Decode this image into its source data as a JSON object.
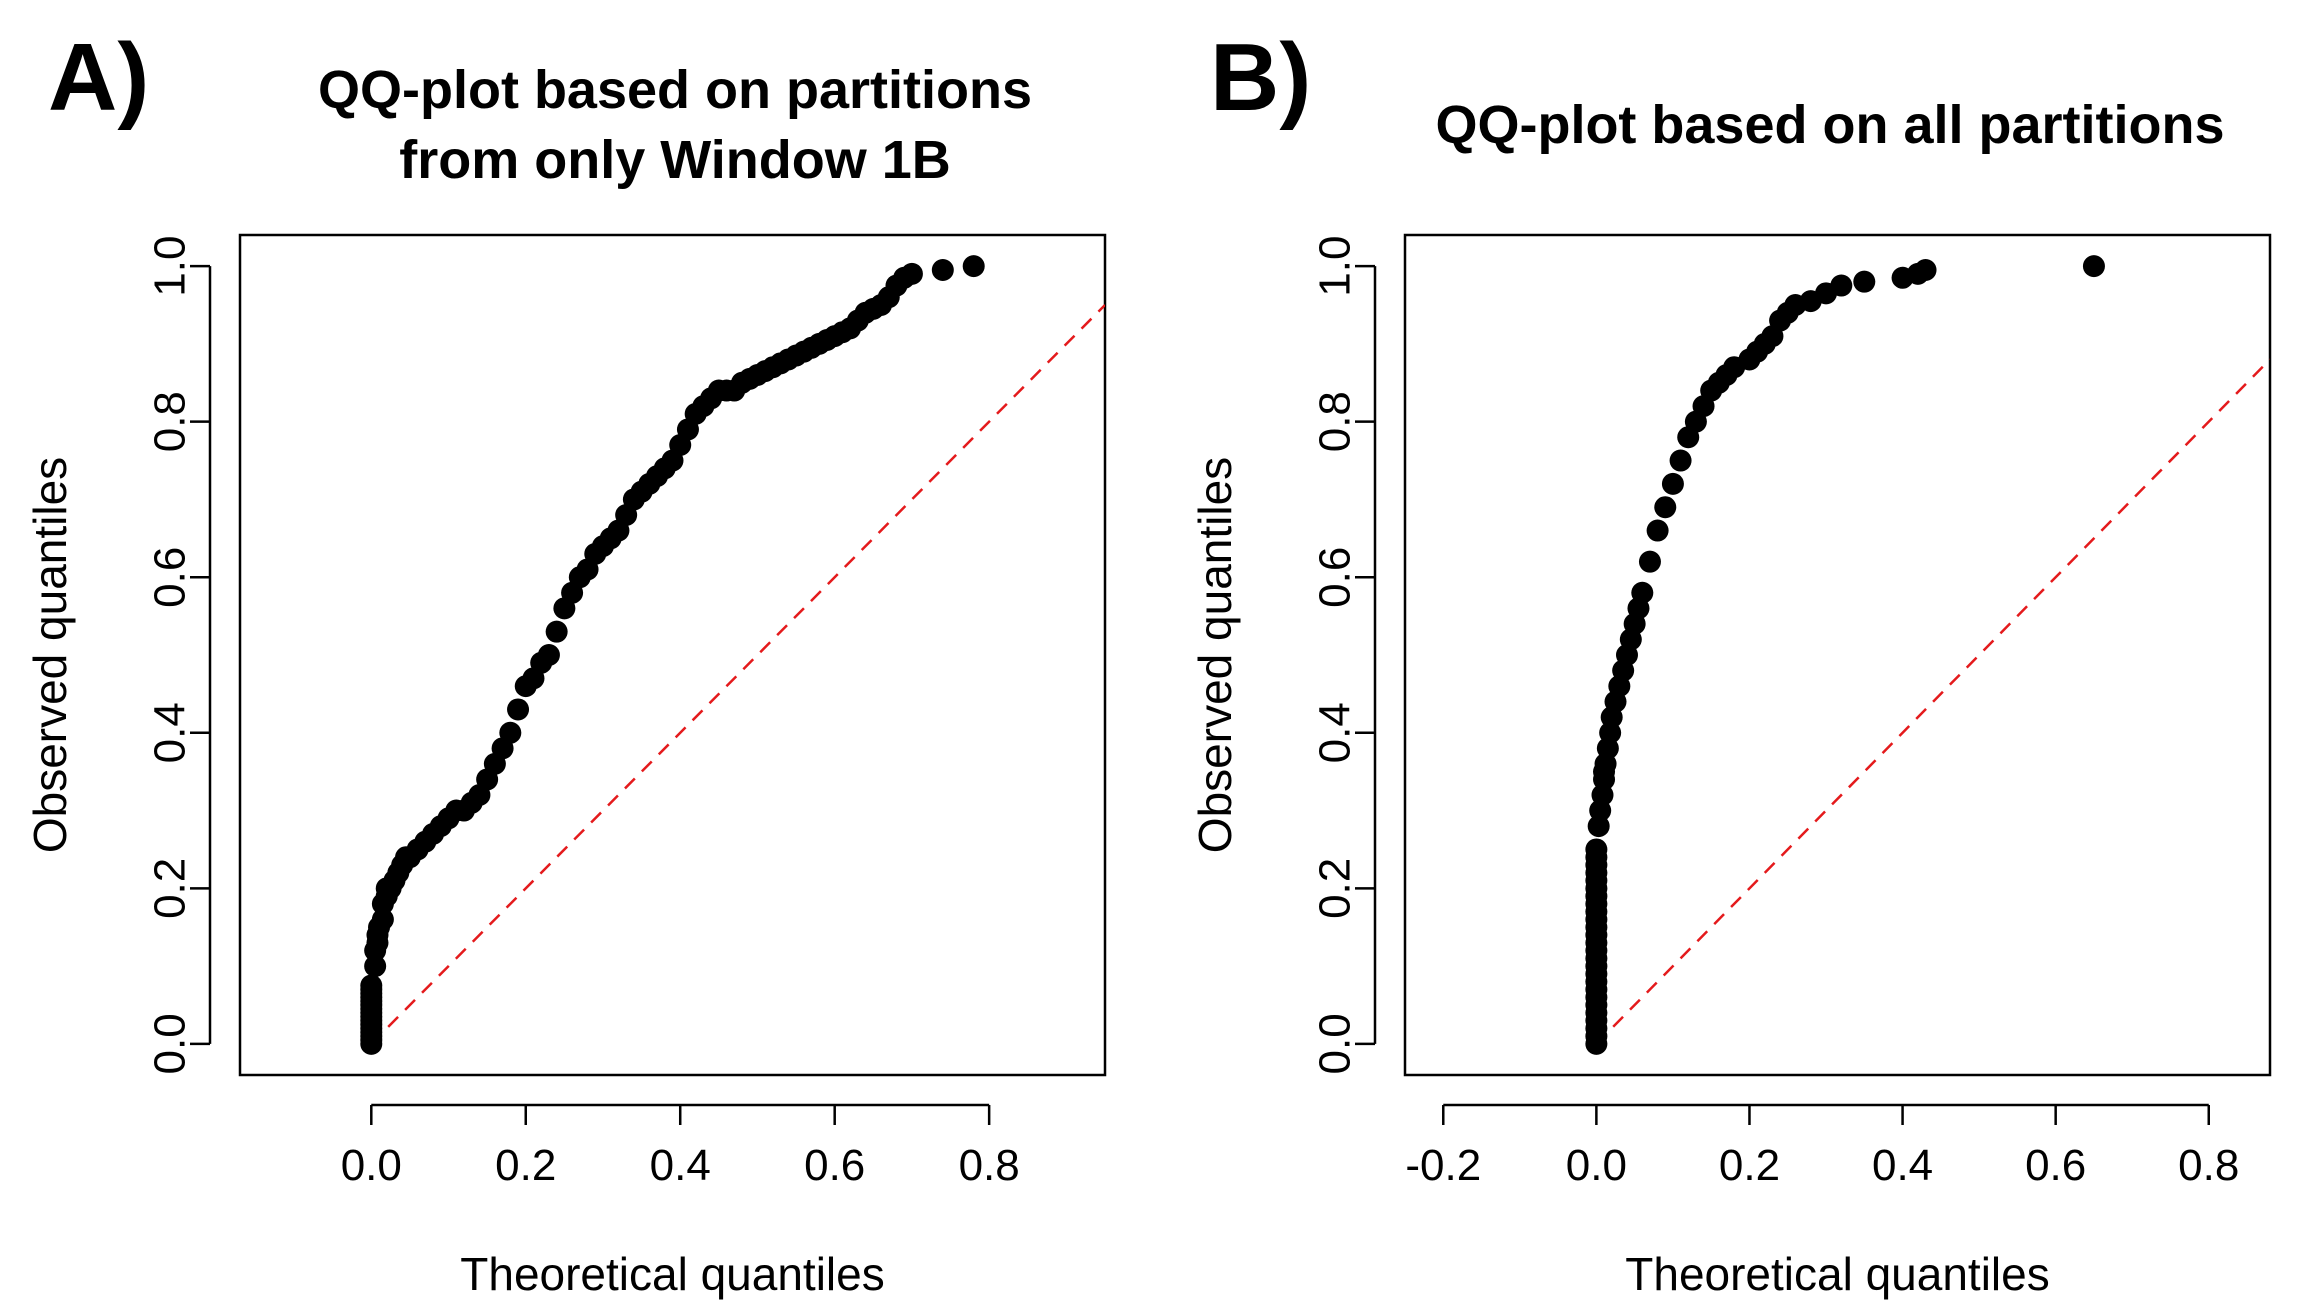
{
  "panels": [
    {
      "letter": "A)",
      "title_line1": "QQ-plot based on partitions",
      "title_line2": "from only Window 1B"
    },
    {
      "letter": "B)",
      "title_line1": "QQ-plot based on all partitions",
      "title_line2": ""
    }
  ],
  "colors": {
    "points": "#000000",
    "reference_line": "#e41a1c",
    "frame": "#000000"
  },
  "chart_data": [
    {
      "type": "scatter",
      "title": "QQ-plot based on partitions from only Window 1B",
      "xlabel": "Theoretical quantiles",
      "ylabel": "Observed quantiles",
      "xlim": [
        -0.17,
        0.95
      ],
      "ylim": [
        -0.04,
        1.04
      ],
      "xticks": [
        "0.0",
        "0.2",
        "0.4",
        "0.6",
        "0.8"
      ],
      "xtick_values": [
        0.0,
        0.2,
        0.4,
        0.6,
        0.8
      ],
      "yticks": [
        "0.0",
        "0.2",
        "0.4",
        "0.6",
        "0.8",
        "1.0"
      ],
      "ytick_values": [
        0.0,
        0.2,
        0.4,
        0.6,
        0.8,
        1.0
      ],
      "reference_line": {
        "slope": 1,
        "intercept": 0,
        "style": "dashed"
      },
      "series": [
        {
          "x": [
            0.0,
            0.0,
            0.0,
            0.0,
            0.0,
            0.0,
            0.0,
            0.0,
            0.0,
            0.0,
            0.0,
            0.0,
            0.0,
            0.0,
            0.0,
            0.0,
            0.005,
            0.005,
            0.008,
            0.008,
            0.01,
            0.015,
            0.015,
            0.02,
            0.02,
            0.025,
            0.03,
            0.035,
            0.04,
            0.045,
            0.05,
            0.06,
            0.07,
            0.08,
            0.09,
            0.1,
            0.11,
            0.12,
            0.13,
            0.14,
            0.15,
            0.16,
            0.17,
            0.18,
            0.19,
            0.2,
            0.21,
            0.22,
            0.23,
            0.24,
            0.25,
            0.26,
            0.27,
            0.28,
            0.29,
            0.3,
            0.31,
            0.32,
            0.33,
            0.34,
            0.35,
            0.36,
            0.37,
            0.38,
            0.39,
            0.4,
            0.41,
            0.42,
            0.43,
            0.44,
            0.45,
            0.46,
            0.47,
            0.48,
            0.49,
            0.5,
            0.51,
            0.52,
            0.53,
            0.54,
            0.55,
            0.56,
            0.57,
            0.58,
            0.59,
            0.6,
            0.61,
            0.62,
            0.63,
            0.64,
            0.65,
            0.66,
            0.67,
            0.68,
            0.69,
            0.7,
            0.74,
            0.78
          ],
          "y": [
            0.0,
            0.005,
            0.01,
            0.015,
            0.02,
            0.025,
            0.03,
            0.035,
            0.04,
            0.045,
            0.05,
            0.055,
            0.06,
            0.065,
            0.07,
            0.075,
            0.1,
            0.12,
            0.13,
            0.14,
            0.15,
            0.16,
            0.18,
            0.19,
            0.2,
            0.2,
            0.21,
            0.22,
            0.23,
            0.24,
            0.24,
            0.25,
            0.26,
            0.27,
            0.28,
            0.29,
            0.3,
            0.3,
            0.31,
            0.32,
            0.34,
            0.36,
            0.38,
            0.4,
            0.43,
            0.46,
            0.47,
            0.49,
            0.5,
            0.53,
            0.56,
            0.58,
            0.6,
            0.61,
            0.63,
            0.64,
            0.65,
            0.66,
            0.68,
            0.7,
            0.71,
            0.72,
            0.73,
            0.74,
            0.75,
            0.77,
            0.79,
            0.81,
            0.82,
            0.83,
            0.84,
            0.84,
            0.84,
            0.85,
            0.855,
            0.86,
            0.865,
            0.87,
            0.875,
            0.88,
            0.885,
            0.89,
            0.895,
            0.9,
            0.905,
            0.91,
            0.915,
            0.92,
            0.93,
            0.94,
            0.945,
            0.95,
            0.96,
            0.975,
            0.985,
            0.99,
            0.995,
            1.0
          ]
        }
      ]
    },
    {
      "type": "scatter",
      "title": "QQ-plot based on all partitions",
      "xlabel": "Theoretical quantiles",
      "ylabel": "Observed quantiles",
      "xlim": [
        -0.25,
        0.88
      ],
      "ylim": [
        -0.04,
        1.04
      ],
      "xticks": [
        "-0.2",
        "0.0",
        "0.2",
        "0.4",
        "0.6",
        "0.8"
      ],
      "xtick_values": [
        -0.2,
        0.0,
        0.2,
        0.4,
        0.6,
        0.8
      ],
      "yticks": [
        "0.0",
        "0.2",
        "0.4",
        "0.6",
        "0.8",
        "1.0"
      ],
      "ytick_values": [
        0.0,
        0.2,
        0.4,
        0.6,
        0.8,
        1.0
      ],
      "reference_line": {
        "slope": 1,
        "intercept": 0,
        "style": "dashed"
      },
      "series": [
        {
          "x": [
            0.0,
            0.0,
            0.0,
            0.0,
            0.0,
            0.0,
            0.0,
            0.0,
            0.0,
            0.0,
            0.0,
            0.0,
            0.0,
            0.0,
            0.0,
            0.0,
            0.0,
            0.0,
            0.0,
            0.0,
            0.0,
            0.0,
            0.0,
            0.0,
            0.0,
            0.0,
            0.003,
            0.005,
            0.008,
            0.01,
            0.01,
            0.012,
            0.015,
            0.018,
            0.02,
            0.025,
            0.03,
            0.035,
            0.04,
            0.045,
            0.05,
            0.055,
            0.06,
            0.07,
            0.08,
            0.09,
            0.1,
            0.11,
            0.12,
            0.13,
            0.14,
            0.15,
            0.16,
            0.17,
            0.18,
            0.2,
            0.21,
            0.22,
            0.23,
            0.24,
            0.25,
            0.26,
            0.28,
            0.3,
            0.32,
            0.35,
            0.4,
            0.42,
            0.43,
            0.65
          ],
          "y": [
            0.0,
            0.01,
            0.02,
            0.03,
            0.04,
            0.05,
            0.06,
            0.07,
            0.08,
            0.09,
            0.1,
            0.11,
            0.12,
            0.13,
            0.14,
            0.15,
            0.16,
            0.17,
            0.18,
            0.19,
            0.2,
            0.21,
            0.22,
            0.23,
            0.24,
            0.25,
            0.28,
            0.3,
            0.32,
            0.34,
            0.35,
            0.36,
            0.38,
            0.4,
            0.42,
            0.44,
            0.46,
            0.48,
            0.5,
            0.52,
            0.54,
            0.56,
            0.58,
            0.62,
            0.66,
            0.69,
            0.72,
            0.75,
            0.78,
            0.8,
            0.82,
            0.84,
            0.85,
            0.86,
            0.87,
            0.88,
            0.89,
            0.9,
            0.91,
            0.93,
            0.94,
            0.95,
            0.955,
            0.965,
            0.975,
            0.98,
            0.985,
            0.99,
            0.995,
            1.0
          ]
        }
      ]
    }
  ]
}
